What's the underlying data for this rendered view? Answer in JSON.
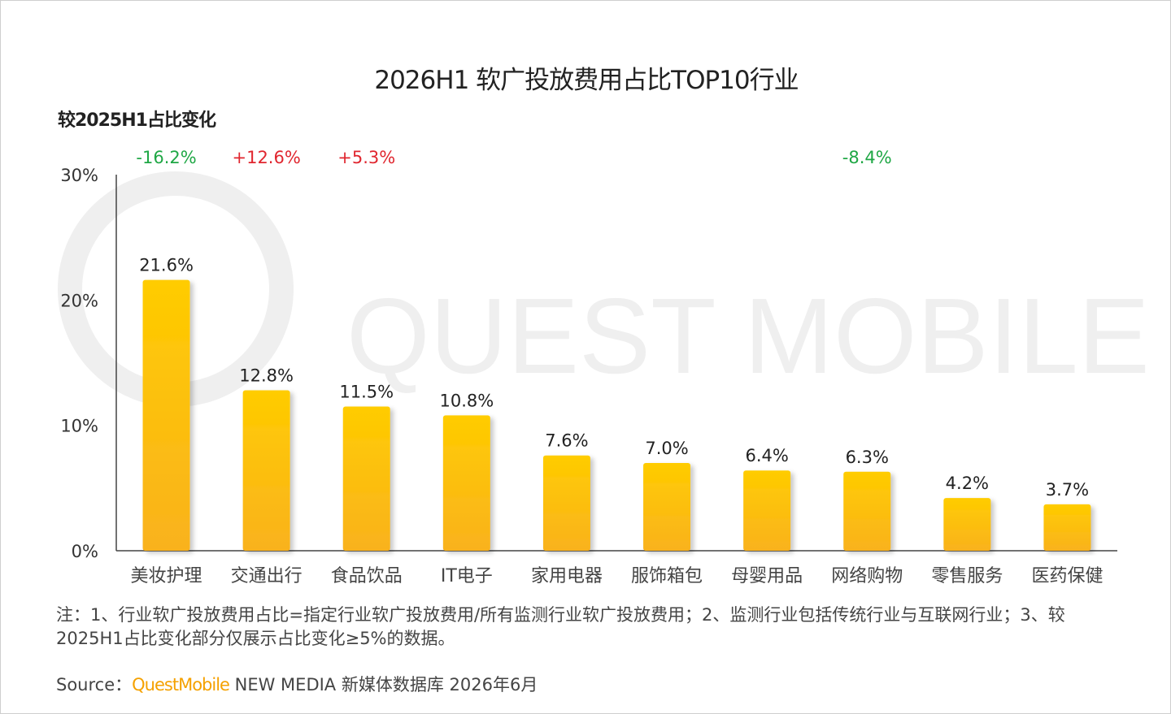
{
  "colors": {
    "bar_top": "#ffcc00",
    "bar_bottom": "#f9b21d",
    "increase": "#e0262f",
    "decrease": "#1fa745",
    "axis": "#444444",
    "brand": "#f5a100",
    "watermark": "#efefef"
  },
  "watermark": "QUEST MOBILE",
  "chart_data": {
    "type": "bar",
    "title": "2026H1 软广投放费用占比TOP10行业",
    "change_heading": "较2025H1占比变化",
    "categories": [
      "美妆护理",
      "交通出行",
      "食品饮品",
      "IT电子",
      "家用电器",
      "服饰箱包",
      "母婴用品",
      "网络购物",
      "零售服务",
      "医药保健"
    ],
    "values": [
      21.6,
      12.8,
      11.5,
      10.8,
      7.6,
      7.0,
      6.4,
      6.3,
      4.2,
      3.7
    ],
    "value_labels": [
      "21.6%",
      "12.8%",
      "11.5%",
      "10.8%",
      "7.6%",
      "7.0%",
      "6.4%",
      "6.3%",
      "4.2%",
      "3.7%"
    ],
    "changes": [
      "-16.2%",
      "+12.6%",
      "+5.3%",
      "",
      "",
      "",
      "",
      "-8.4%",
      "",
      ""
    ],
    "y_ticks": [
      0,
      10,
      20,
      30
    ],
    "y_tick_labels": [
      "0%",
      "10%",
      "20%",
      "30%"
    ],
    "ylim": [
      0,
      30
    ],
    "grid": false
  },
  "footer": {
    "note": "注：1、行业软广投放费用占比=指定行业软广投放费用/所有监测行业软广投放费用；2、监测行业包括传统行业与互联网行业；3、较2025H1占比变化部分仅展示占比变化≥5%的数据。",
    "source_label": "Source：",
    "source_brand": "QuestMobile",
    "source_rest": " NEW MEDIA 新媒体数据库 2026年6月"
  }
}
